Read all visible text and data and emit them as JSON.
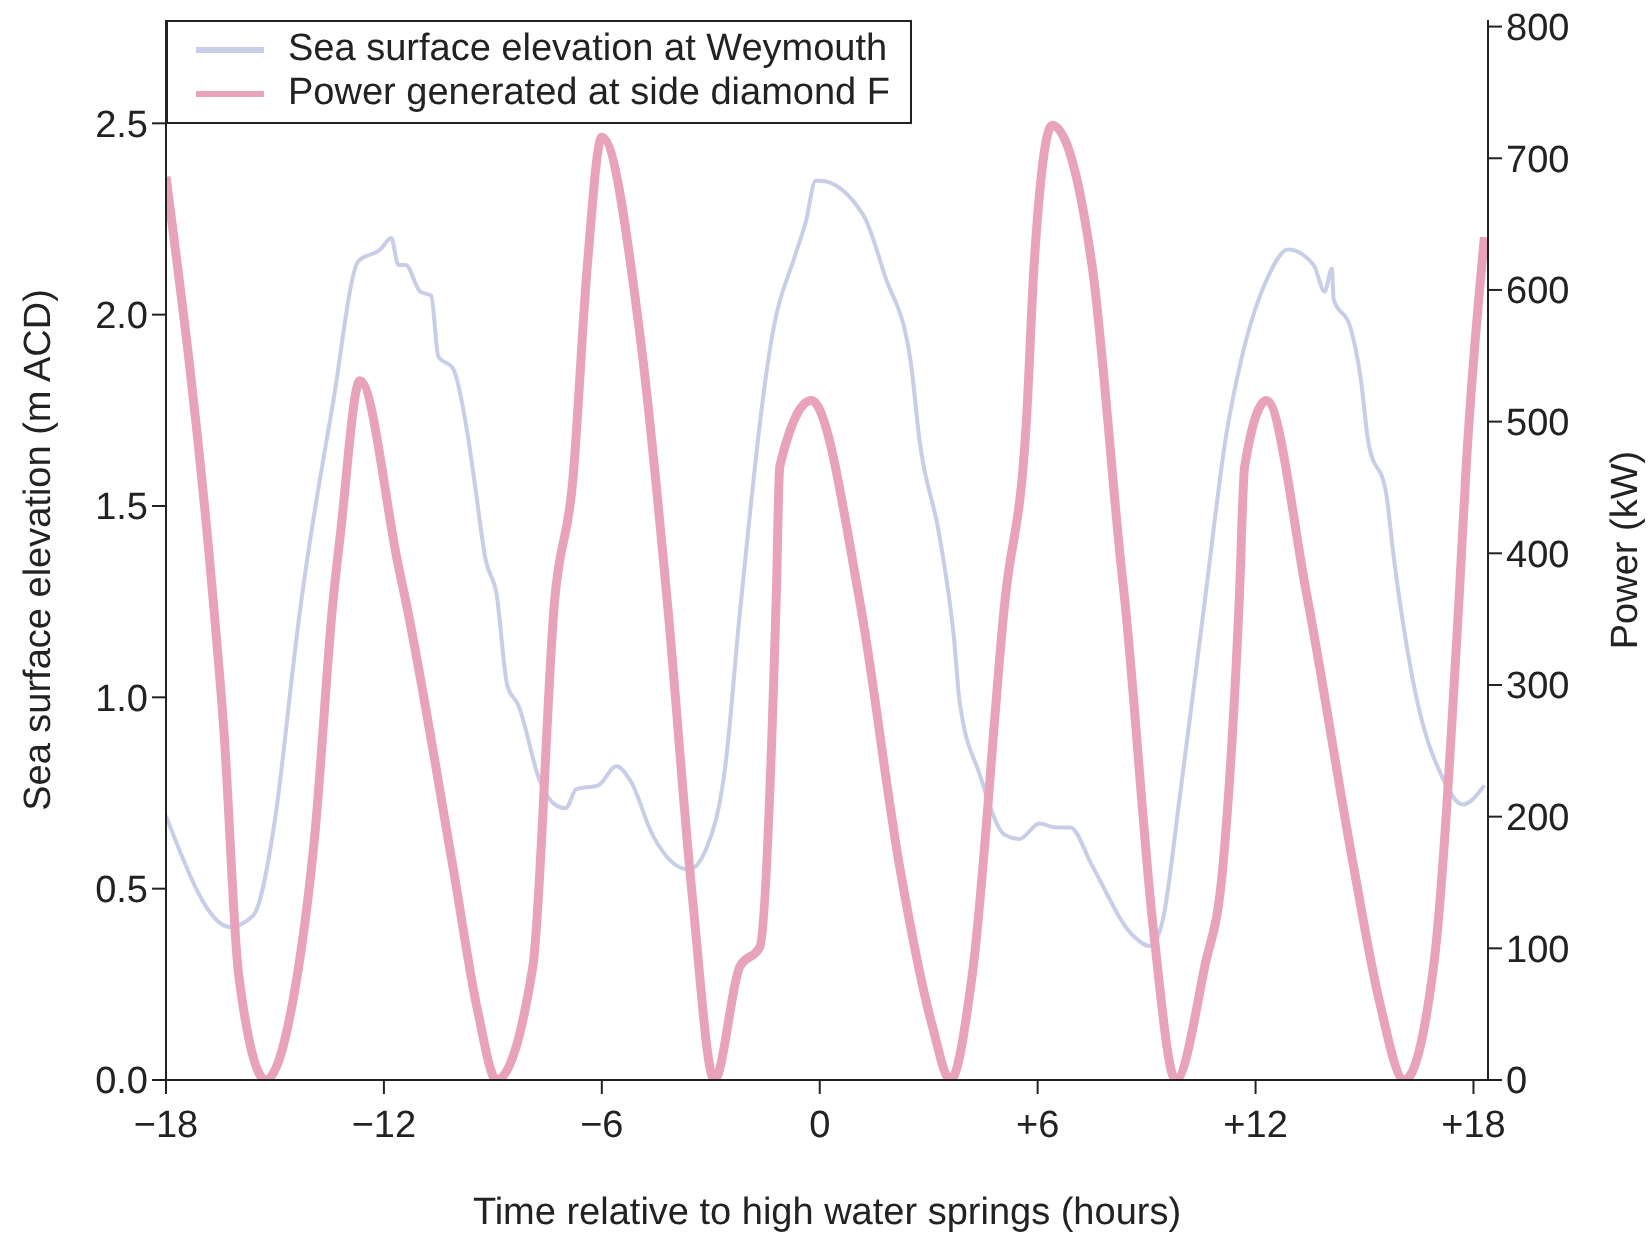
{
  "chart_data": {
    "type": "line",
    "xlabel": "Time relative to high water springs (hours)",
    "ylabel": "Sea surface elevation (m ACD)",
    "y2label": "Power (kW)",
    "xlim": [
      -18,
      18.4
    ],
    "ylim": [
      0,
      2.77
    ],
    "y2lim": [
      0,
      805
    ],
    "xticks": [
      {
        "value": -18,
        "label": "−18"
      },
      {
        "value": -12,
        "label": "−12"
      },
      {
        "value": -6,
        "label": "−6"
      },
      0,
      {
        "value": 6,
        "label": "+6"
      },
      {
        "value": 12,
        "label": "+12"
      },
      {
        "value": 18,
        "label": "+18"
      }
    ],
    "yticks": [
      {
        "value": 0,
        "label": "0.0"
      },
      {
        "value": 0.5,
        "label": "0.5"
      },
      {
        "value": 1,
        "label": "1.0"
      },
      {
        "value": 1.5,
        "label": "1.5"
      },
      {
        "value": 2,
        "label": "2.0"
      },
      {
        "value": 2.5,
        "label": "2.5"
      }
    ],
    "y2ticks": [
      0,
      100,
      200,
      300,
      400,
      500,
      600,
      700,
      800
    ],
    "legend": "top left",
    "marker": "none",
    "series": [
      {
        "name": "Sea surface elevation at Weymouth",
        "color": "#c8cde8",
        "x": [
          -18,
          -16.24,
          -15.6,
          -15.0,
          -14.5,
          -14.4,
          -13.4,
          -12.7,
          -12.1,
          -11.8,
          -11.6,
          -11.4,
          -11.0,
          -10.7,
          -10.5,
          -10.1,
          -9.7,
          -9.5,
          -9.2,
          -8.9,
          -8.6,
          -8.3,
          -7.7,
          -7.3,
          -7.0,
          -6.7,
          -6.1,
          -5.6,
          -5.2,
          -4.6,
          -3.6,
          -3.1,
          -2.6,
          -2.2,
          -1.3,
          -0.66,
          -0.39,
          -0.11,
          0.0,
          1.2,
          1.8,
          2.5,
          2.75,
          3.3,
          3.7,
          3.85,
          4.4,
          5.1,
          5.5,
          6.05,
          6.5,
          6.9,
          7.5,
          8.6,
          9.1,
          9.45,
          9.9,
          10.6,
          11.2,
          11.6,
          12.3,
          12.9,
          13.6,
          13.9,
          14.1,
          14.15,
          14.6,
          14.9,
          15.1,
          15.6,
          15.8,
          16.3,
          17.2,
          17.7,
          18.3
        ],
        "values": [
          0.69,
          0.4,
          0.43,
          0.68,
          1.08,
          1.16,
          1.77,
          2.14,
          2.17,
          2.2,
          2.13,
          2.13,
          2.06,
          2.05,
          1.89,
          1.86,
          1.69,
          1.56,
          1.36,
          1.27,
          1.03,
          0.98,
          0.78,
          0.72,
          0.71,
          0.76,
          0.77,
          0.82,
          0.78,
          0.64,
          0.55,
          0.61,
          0.82,
          1.22,
          1.95,
          2.16,
          2.24,
          2.35,
          2.35,
          2.26,
          2.1,
          1.88,
          1.67,
          1.42,
          1.15,
          0.99,
          0.8,
          0.64,
          0.63,
          0.67,
          0.66,
          0.66,
          0.56,
          0.38,
          0.35,
          0.42,
          0.73,
          1.25,
          1.69,
          1.88,
          2.09,
          2.17,
          2.13,
          2.06,
          2.12,
          2.04,
          1.97,
          1.83,
          1.67,
          1.53,
          1.37,
          1.06,
          0.78,
          0.72,
          0.77
        ]
      },
      {
        "name": "Power generated at side diamond F",
        "color": "#e8a3bb",
        "axis": "y2",
        "x": [
          -18,
          -16.7,
          -16.4,
          -16.0,
          -15.25,
          -14.5,
          -13.9,
          -13.4,
          -13.2,
          -12.66,
          -11.6,
          -11.4,
          -10.1,
          -9.4,
          -8.9,
          -7.9,
          -7.3,
          -6.8,
          -6.4,
          -6.0,
          -4.95,
          -4.2,
          -3.5,
          -2.9,
          -2.2,
          -1.65,
          -1.2,
          -1.1,
          -0.23,
          1.1,
          2.2,
          3.1,
          3.6,
          4.2,
          5.1,
          5.7,
          5.9,
          6.4,
          7.5,
          8.3,
          8.4,
          9.2,
          9.8,
          10.6,
          11.1,
          11.55,
          11.7,
          12.3,
          13.4,
          14.7,
          15.4,
          16.1,
          16.9,
          17.6,
          17.8,
          18.3
        ],
        "values": [
          686,
          364,
          263,
          80,
          0,
          61,
          187,
          364,
          414,
          531,
          390,
          364,
          162,
          50,
          0,
          86,
          364,
          455,
          618,
          716,
          566,
          364,
          137,
          0,
          86,
          101,
          364,
          466,
          516,
          364,
          162,
          41,
          0,
          80,
          364,
          505,
          618,
          725,
          618,
          390,
          364,
          111,
          0,
          86,
          162,
          364,
          466,
          516,
          370,
          162,
          61,
          0,
          86,
          364,
          466,
          640
        ]
      }
    ]
  }
}
